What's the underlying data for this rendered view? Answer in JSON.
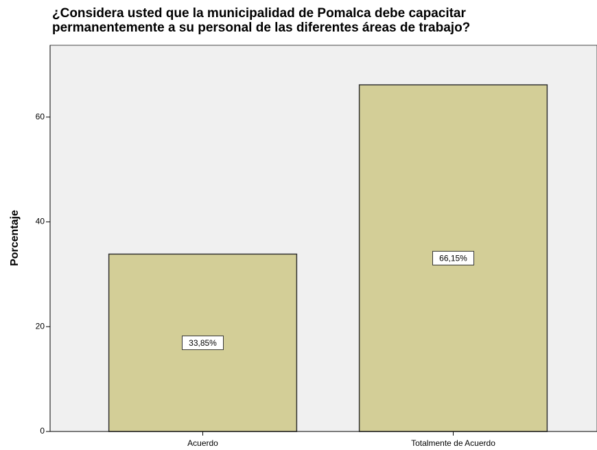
{
  "chart_data": {
    "type": "bar",
    "title": [
      "¿Considera usted que la municipalidad de Pomalca debe capacitar",
      "permanentemente a su personal de las diferentes áreas de trabajo?"
    ],
    "y_label": "Porcentaje",
    "categories": [
      "Acuerdo",
      "Totalmente de Acuerdo"
    ],
    "values": [
      33.85,
      66.15
    ],
    "value_labels": [
      "33,85%",
      "66,15%"
    ],
    "color": "#d3ce97",
    "ylim": [
      0,
      73.7
    ],
    "yticks": [
      0,
      20,
      40,
      60
    ],
    "grid": false
  }
}
